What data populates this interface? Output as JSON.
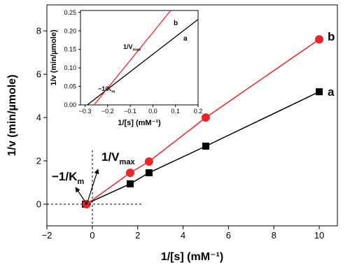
{
  "chart_data": [
    {
      "type": "line",
      "xlabel": "1/[s] (mM⁻¹)",
      "ylabel": "1/v (min/µmole)",
      "xlim": [
        -2,
        10.8
      ],
      "ylim": [
        -1,
        9.2
      ],
      "xticks": [
        {
          "value": -2,
          "label": "−2"
        },
        0,
        2,
        4,
        6,
        8,
        10
      ],
      "yticks": [
        0,
        2,
        4,
        6,
        8
      ],
      "series": [
        {
          "name": "a",
          "color": "#000000",
          "marker": "square",
          "x": [
            -0.3,
            1.67,
            2.5,
            5,
            10
          ],
          "values": [
            0,
            0.94,
            1.45,
            2.68,
            5.19
          ]
        },
        {
          "name": "b",
          "color": "#e8262a",
          "marker": "circle",
          "x": [
            -0.25,
            1.67,
            2.5,
            5,
            10
          ],
          "values": [
            0,
            1.45,
            1.97,
            4.0,
            7.61
          ]
        }
      ],
      "annotations": [
        {
          "text": "1/V",
          "sub": "max"
        },
        {
          "text": "−1/K",
          "sub": "m"
        }
      ]
    },
    {
      "type": "line",
      "xlabel": "1/[s] (mM⁻¹)",
      "ylabel": "1/v (min/µmole)",
      "xlim": [
        -0.32,
        0.2
      ],
      "ylim": [
        0,
        0.255
      ],
      "xticks": [
        {
          "value": -0.3,
          "label": "−0.3"
        },
        {
          "value": -0.2,
          "label": "−0.2"
        },
        {
          "value": -0.1,
          "label": "−0.1"
        },
        {
          "value": 0,
          "label": "0.0"
        },
        0.1,
        0.2
      ],
      "yticks": [
        {
          "value": 0,
          "label": "0.00"
        },
        0.05,
        {
          "value": 0.1,
          "label": "0.10"
        },
        0.15,
        {
          "value": 0.2,
          "label": "0.20"
        },
        0.25
      ],
      "series": [
        {
          "name": "a",
          "color": "#000000",
          "x": [
            -0.29,
            0.2
          ],
          "values": [
            0,
            0.231
          ]
        },
        {
          "name": "b",
          "color": "#e8262a",
          "x": [
            -0.26,
            0.079
          ],
          "values": [
            0,
            0.255
          ]
        }
      ],
      "annotations": [
        {
          "text": "1/V",
          "sub": "max"
        },
        {
          "text": "−1/K",
          "sub": "m"
        }
      ]
    }
  ]
}
